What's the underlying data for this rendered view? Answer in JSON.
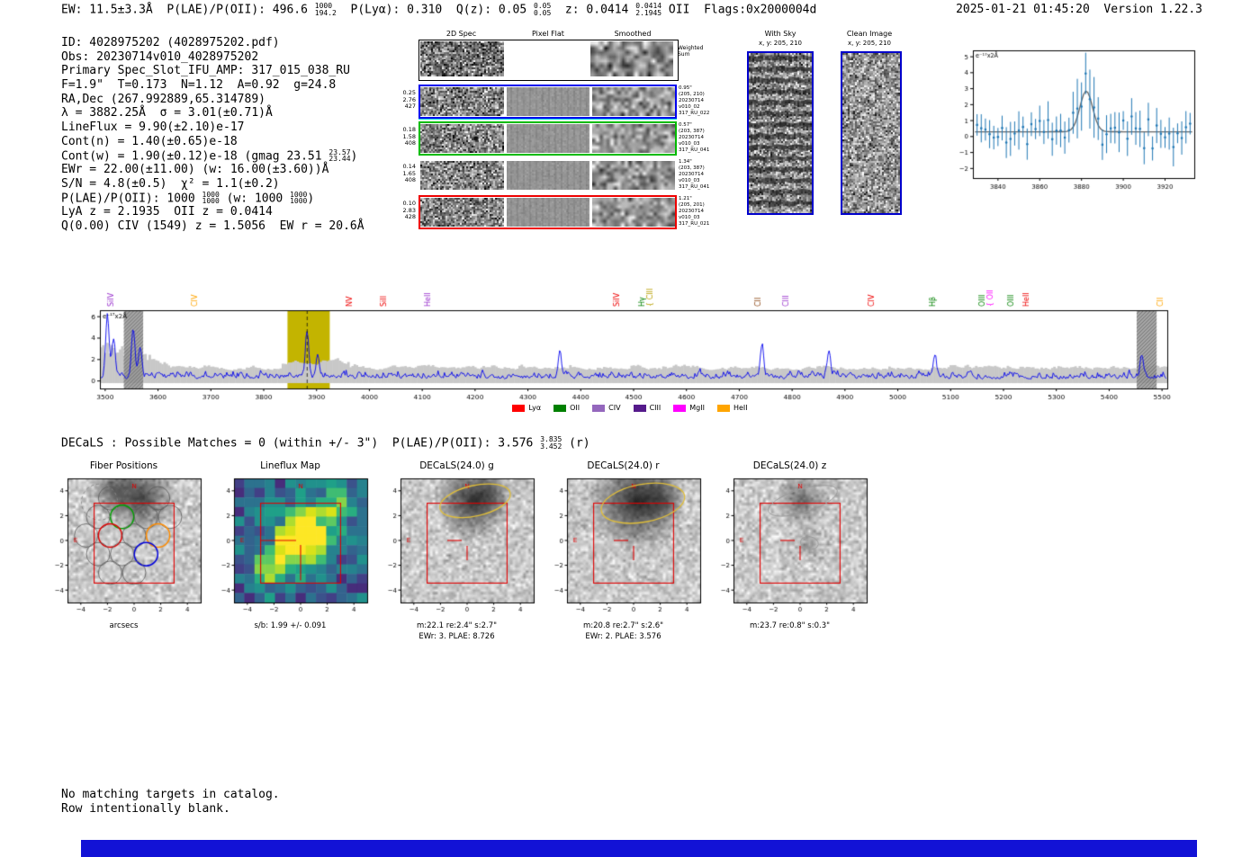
{
  "header": {
    "summary": [
      {
        "t": "EW: 11.5±3.3Å  P(LAE)/P(OII): 496.6 "
      },
      {
        "sup": "1000",
        "sub": "194.2"
      },
      {
        "t": "  P(Lyα): 0.310  Q(z): 0.05 "
      },
      {
        "sup": "0.05",
        "sub": "0.05"
      },
      {
        "t": "  z: 0.0414 "
      },
      {
        "sup": "0.0414",
        "sub": "2.1945"
      },
      {
        "t": " OII  Flags:0x2000004d"
      }
    ],
    "timestamp": "2025-01-21 01:45:20  Version 1.22.3"
  },
  "info": {
    "lines": [
      [
        {
          "t": "ID: 4028975202 (4028975202.pdf)"
        }
      ],
      [
        {
          "t": "Obs: 20230714v010_4028975202"
        }
      ],
      [
        {
          "t": "Primary Spec_Slot_IFU_AMP: 317_015_038_RU"
        }
      ],
      [
        {
          "t": "F=1.9\"  T=0.173  N=1.12  A=0.92  g=24.8"
        }
      ],
      [
        {
          "t": "RA,Dec (267.992889,65.314789)"
        }
      ],
      [
        {
          "t": "λ = 3882.25Å  σ = 3.01(±0.71)Å"
        }
      ],
      [
        {
          "t": "LineFlux = 9.90(±2.10)e-17"
        }
      ],
      [
        {
          "t": "Cont(n) = 1.40(±0.65)e-18"
        }
      ],
      [
        {
          "t": "Cont(w) = 1.90(±0.12)e-18 (gmag 23.51 "
        },
        {
          "sup": "23.57",
          "sub": "23.44"
        },
        {
          "t": ")"
        }
      ],
      [
        {
          "t": "EWr = 22.00(±11.00) (w: 16.00(±3.60))Å"
        }
      ],
      [
        {
          "t": "S/N = 4.8(±0.5)  χ² = 1.1(±0.2)"
        }
      ],
      [
        {
          "t": "P(LAE)/P(OII): 1000 "
        },
        {
          "sup": "1000",
          "sub": "1000"
        },
        {
          "t": " (w: 1000 "
        },
        {
          "sup": "1000",
          "sub": "1000"
        },
        {
          "t": ")"
        }
      ],
      [
        {
          "t": "LyA z = 2.1935  OII z = 0.0414"
        }
      ],
      [
        {
          "t": "Q(0.00) CIV (1549) z = 1.5056  EW r = 20.6Å"
        }
      ]
    ]
  },
  "spec2d": {
    "headers": [
      "2D Spec",
      "Pixel Flat",
      "Smoothed"
    ],
    "weighted_label": [
      "Weighted",
      "Sum"
    ],
    "rows": [
      {
        "left": [
          "0.25",
          "2.76",
          "427"
        ],
        "border": "#0000ee",
        "right": [
          "0.95\"",
          "(205, 210)",
          "20230714",
          "v010_02",
          "317_RU_022"
        ]
      },
      {
        "left": [
          "0.18",
          "1.58",
          "408"
        ],
        "border": "#00bb00",
        "right": [
          "0.57\"",
          "(203, 387)",
          "20230714",
          "v010_03",
          "317_RU_041"
        ]
      },
      {
        "left": [
          "0.14",
          "1.65",
          "408"
        ],
        "border": "transparent",
        "right": [
          "1.34\"",
          "(203, 387)",
          "20230714",
          "v010_03",
          "317_RU_041"
        ]
      },
      {
        "left": [
          "0.10",
          "2.83",
          "428"
        ],
        "border": "#ee0000",
        "right": [
          "1.21\"",
          "(205, 201)",
          "20230714",
          "v010_03",
          "317_RU_021"
        ]
      }
    ]
  },
  "withsky": {
    "title": "With Sky",
    "sub": "x, y: 205, 210"
  },
  "clean": {
    "title": "Clean Image",
    "sub": "x, y: 205, 210"
  },
  "decals_header": [
    {
      "t": "DECaLS : Possible Matches = 0 (within +/- 3\")  P(LAE)/P(OII): 3.576 "
    },
    {
      "sup": "3.835",
      "sub": "3.452"
    },
    {
      "t": " (r)"
    }
  ],
  "cutouts": {
    "ticks": [
      -4,
      -2,
      0,
      2,
      4
    ],
    "panels": [
      {
        "key": "fibers",
        "title": "Fiber Positions",
        "xlabel": "arcsecs"
      },
      {
        "key": "lineflux",
        "title": "Lineflux Map",
        "xlabel": "s/b: 1.99 +/- 0.091"
      },
      {
        "key": "decals_g",
        "title": "DECaLS(24.0) g",
        "xlabel": "m:22.1 re:2.4\" s:2.7\"",
        "xlabel2": "EWr: 3. PLAE: 8.726"
      },
      {
        "key": "decals_r",
        "title": "DECaLS(24.0) r",
        "xlabel": "m:20.8 re:2.7\" s:2.6\"",
        "xlabel2": "EWr: 2. PLAE: 3.576"
      },
      {
        "key": "decals_z",
        "title": "DECaLS(24.0) z",
        "xlabel": "m:23.7 re:0.8\" s:0.3\""
      }
    ]
  },
  "footer": {
    "lines": [
      "No matching targets in catalog.",
      "Row intentionally blank."
    ]
  },
  "colors": {
    "bottom_bar": "#1212d6",
    "panel_border_blue": "#0000cc"
  },
  "chart_data": [
    {
      "id": "zoom_spectrum",
      "type": "scatter",
      "annotation": "e⁻¹⁷x2Å",
      "xlim": [
        3828,
        3934
      ],
      "ylim": [
        -2.6,
        5.4
      ],
      "x_ticks": [
        3840,
        3860,
        3880,
        3900,
        3920
      ],
      "y_ticks": [
        -2,
        -1,
        0,
        1,
        2,
        3,
        4,
        5
      ],
      "fit": {
        "center": 3882.25,
        "sigma": 3.01,
        "amplitude": 2.55,
        "baseline": 0.3,
        "color": "#666666"
      },
      "points_color": "#1f77b4",
      "seed": 42,
      "noise_sigma": 0.75,
      "err_range": [
        0.55,
        1.25
      ]
    },
    {
      "id": "main_spectrum",
      "type": "line",
      "annotation": "e⁻¹⁷x2Å",
      "xlim": [
        3490,
        5510
      ],
      "ylim": [
        -0.7,
        6.6
      ],
      "x_ticks": [
        3500,
        3600,
        3700,
        3800,
        3900,
        4000,
        4100,
        4200,
        4300,
        4400,
        4500,
        4600,
        4700,
        4800,
        4900,
        5000,
        5100,
        5200,
        5300,
        5400,
        5500
      ],
      "y_ticks": [
        0,
        2,
        4,
        6
      ],
      "line_color": "#0000ee",
      "error_band_color": "#c8c8c8",
      "highlight_band": {
        "x0": 3845,
        "x1": 3925,
        "color": "#c3b400",
        "center_line": 3882.25
      },
      "masked_bands": [
        [
          3535,
          3572
        ],
        [
          5452,
          5490
        ]
      ],
      "seed": 7,
      "peaks": [
        [
          3504,
          5.6
        ],
        [
          3516,
          3.2
        ],
        [
          3553,
          4.4
        ],
        [
          3566,
          2.8
        ],
        [
          3882,
          4.2
        ],
        [
          3902,
          1.8
        ],
        [
          4360,
          2.2
        ],
        [
          4743,
          3.1
        ],
        [
          4870,
          2.5
        ],
        [
          5070,
          2.0
        ],
        [
          5462,
          2.0
        ]
      ],
      "emission_lines": [
        {
          "name": "SiIV",
          "wave": 3512,
          "color": "#9932cc"
        },
        {
          "name": "CIV",
          "wave": 3670,
          "color": "#ffa500"
        },
        {
          "name": "NV",
          "wave": 3963,
          "color": "#ee0000"
        },
        {
          "name": "SiII",
          "wave": 4028,
          "color": "#ee0000"
        },
        {
          "name": "HeII",
          "wave": 4110,
          "color": "#9932cc"
        },
        {
          "name": "SiIV",
          "wave": 4468,
          "color": "#ee0000"
        },
        {
          "name": "Hγ",
          "wave": 4516,
          "color": "#008000"
        },
        {
          "name": "CIII",
          "wave": 4532,
          "color": "#b8a000",
          "brace": true
        },
        {
          "name": "CII",
          "wave": 4736,
          "color": "#8b4513"
        },
        {
          "name": "CIII",
          "wave": 4789,
          "color": "#9932cc"
        },
        {
          "name": "CIV",
          "wave": 4950,
          "color": "#ee0000"
        },
        {
          "name": "Hβ",
          "wave": 5066,
          "color": "#008000"
        },
        {
          "name": "OIII",
          "wave": 5160,
          "color": "#008000"
        },
        {
          "name": "OII",
          "wave": 5176,
          "color": "#ff00ff",
          "brace": true
        },
        {
          "name": "OIII",
          "wave": 5215,
          "color": "#008000"
        },
        {
          "name": "HeII",
          "wave": 5243,
          "color": "#ee0000"
        },
        {
          "name": "CII",
          "wave": 5497,
          "color": "#ffa500"
        }
      ],
      "legend": [
        {
          "label": "Lyα",
          "color": "#ff0000"
        },
        {
          "label": "OII",
          "color": "#008000"
        },
        {
          "label": "CIV",
          "color": "#9467bd"
        },
        {
          "label": "CIII",
          "color": "#551a8b"
        },
        {
          "label": "MgII",
          "color": "#ff00ff"
        },
        {
          "label": "HeII",
          "color": "#ffa500"
        }
      ]
    }
  ]
}
